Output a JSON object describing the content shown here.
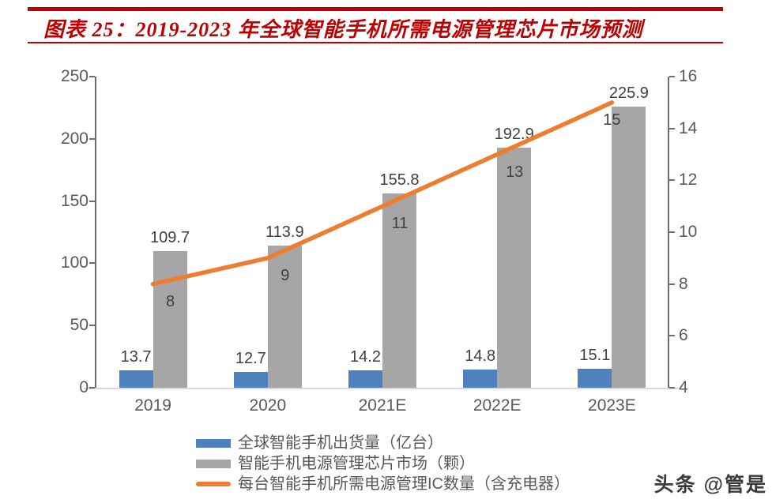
{
  "header": {
    "title": "图表 25：2019-2023 年全球智能手机所需电源管理芯片市场预测",
    "accent_color": "#c00000"
  },
  "watermark": "头条 @管是",
  "chart_data": {
    "type": "bar+line combo",
    "categories": [
      "2019",
      "2020",
      "2021E",
      "2022E",
      "2023E"
    ],
    "series": [
      {
        "name": "全球智能手机出货量（亿台）",
        "type": "bar",
        "axis": "left",
        "color": "#4e81bd",
        "values": [
          13.7,
          12.7,
          14.2,
          14.8,
          15.1
        ]
      },
      {
        "name": "智能手机电源管理芯片市场（颗）",
        "type": "bar",
        "axis": "left",
        "color": "#a6a6a6",
        "values": [
          109.7,
          113.9,
          155.8,
          192.9,
          225.9
        ]
      },
      {
        "name": "每台智能手机所需电源管理IC数量（含充电器）",
        "type": "line",
        "axis": "right",
        "color": "#ed7d31",
        "values": [
          8,
          9,
          11,
          13,
          15
        ]
      }
    ],
    "left_axis": {
      "min": 0,
      "max": 250,
      "step": 50,
      "ticks": [
        0,
        50,
        100,
        150,
        200,
        250
      ]
    },
    "right_axis": {
      "min": 4,
      "max": 16,
      "step": 2,
      "ticks": [
        4,
        6,
        8,
        10,
        12,
        14,
        16
      ]
    },
    "grid": false,
    "legend_position": "bottom",
    "axis_colors": {
      "y_axis_line": "#6e6e6e",
      "x_axis_line": "#d9d9d9",
      "tick_text": "#595959",
      "data_label_text": "#404040"
    }
  }
}
